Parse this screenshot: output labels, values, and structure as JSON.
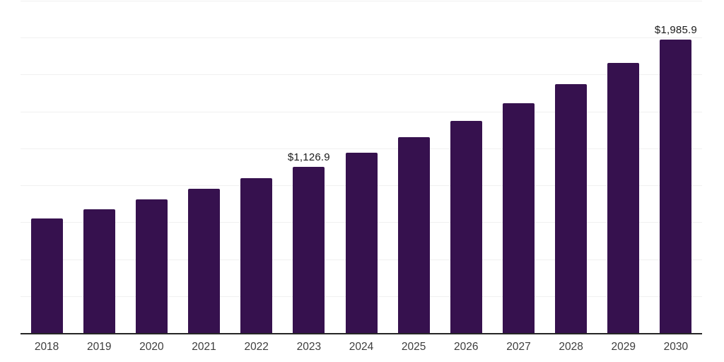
{
  "chart_data": {
    "type": "bar",
    "title": "",
    "xlabel": "",
    "ylabel": "",
    "categories": [
      "2018",
      "2019",
      "2020",
      "2021",
      "2022",
      "2023",
      "2024",
      "2025",
      "2026",
      "2027",
      "2028",
      "2029",
      "2030"
    ],
    "values": [
      777,
      840,
      903,
      975,
      1050,
      1126.9,
      1222,
      1325,
      1437,
      1558,
      1685,
      1830,
      1985.9
    ],
    "point_labels": [
      "",
      "",
      "",
      "",
      "",
      "$1,126.9",
      "",
      "",
      "",
      "",
      "",
      "",
      "$1,985.9"
    ],
    "ylim": [
      0,
      2250
    ],
    "gridline_interval": 250,
    "grid": "horizontal",
    "legend_position": "none",
    "bar_color": "#36114E",
    "axis_line_color": "#262626",
    "gridline_color": "#f0f0f0",
    "tick_label_color": "#3d3d3d",
    "data_label_color": "#1a1a1a"
  }
}
